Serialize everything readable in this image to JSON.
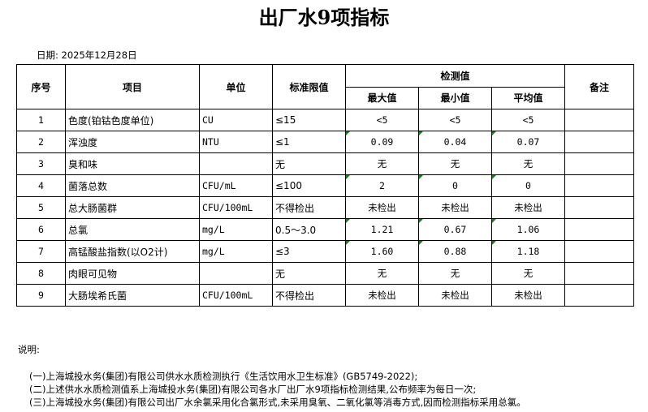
{
  "title": "出厂水9项指标",
  "date": "日期: 2025年12月28日",
  "headers": {
    "no": "序号",
    "item": "项目",
    "unit": "单位",
    "limit": "标准限值",
    "measured": "检测值",
    "max": "最大值",
    "min": "最小值",
    "avg": "平均值",
    "remark": "备注"
  },
  "rows": [
    {
      "no": "1",
      "item": "色度(铂钴色度单位)",
      "unit": "CU",
      "limit": "≤15",
      "max": "<5",
      "min": "<5",
      "avg": "<5",
      "remark": "",
      "flag": false
    },
    {
      "no": "2",
      "item": "浑浊度",
      "unit": "NTU",
      "limit": "≤1",
      "max": "0.09",
      "min": "0.04",
      "avg": "0.07",
      "remark": "",
      "flag": true
    },
    {
      "no": "3",
      "item": "臭和味",
      "unit": "",
      "limit": "无",
      "max": "无",
      "min": "无",
      "avg": "无",
      "remark": "",
      "flag": false
    },
    {
      "no": "4",
      "item": "菌落总数",
      "unit": "CFU/mL",
      "limit": "≤100",
      "max": "2",
      "min": "0",
      "avg": "0",
      "remark": "",
      "flag": true
    },
    {
      "no": "5",
      "item": "总大肠菌群",
      "unit": "CFU/100mL",
      "limit": "不得检出",
      "max": "未检出",
      "min": "未检出",
      "avg": "未检出",
      "remark": "",
      "flag": false
    },
    {
      "no": "6",
      "item": "总氯",
      "unit": "mg/L",
      "limit": "0.5～3.0",
      "max": "1.21",
      "min": "0.67",
      "avg": "1.06",
      "remark": "",
      "flag": true
    },
    {
      "no": "7",
      "item": "高锰酸盐指数(以O2计)",
      "unit": "mg/L",
      "limit": "≤3",
      "max": "1.60",
      "min": "0.88",
      "avg": "1.18",
      "remark": "",
      "flag": true
    },
    {
      "no": "8",
      "item": "肉眼可见物",
      "unit": "",
      "limit": "无",
      "max": "无",
      "min": "无",
      "avg": "无",
      "remark": "",
      "flag": false
    },
    {
      "no": "9",
      "item": "大肠埃希氏菌",
      "unit": "CFU/100mL",
      "limit": "不得检出",
      "max": "未检出",
      "min": "未检出",
      "avg": "未检出",
      "remark": "",
      "flag": false
    }
  ],
  "notes": {
    "heading": "说明:",
    "items": [
      "(一)上海城投水务(集团)有限公司供水水质检测执行《生活饮用水卫生标准》(GB5749-2022);",
      "(二)上述供水水质检测值系上海城投水务(集团)有限公司各水厂出厂水9项指标检测结果,公布频率为每日一次;",
      "(三)上海城投水务(集团)有限公司出厂水余氯采用化合氯形式,未采用臭氧、二氧化氯等消毒方式,因而检测指标采用总氯。"
    ]
  },
  "colors": {
    "error_indicator": "#1e7a1e"
  }
}
